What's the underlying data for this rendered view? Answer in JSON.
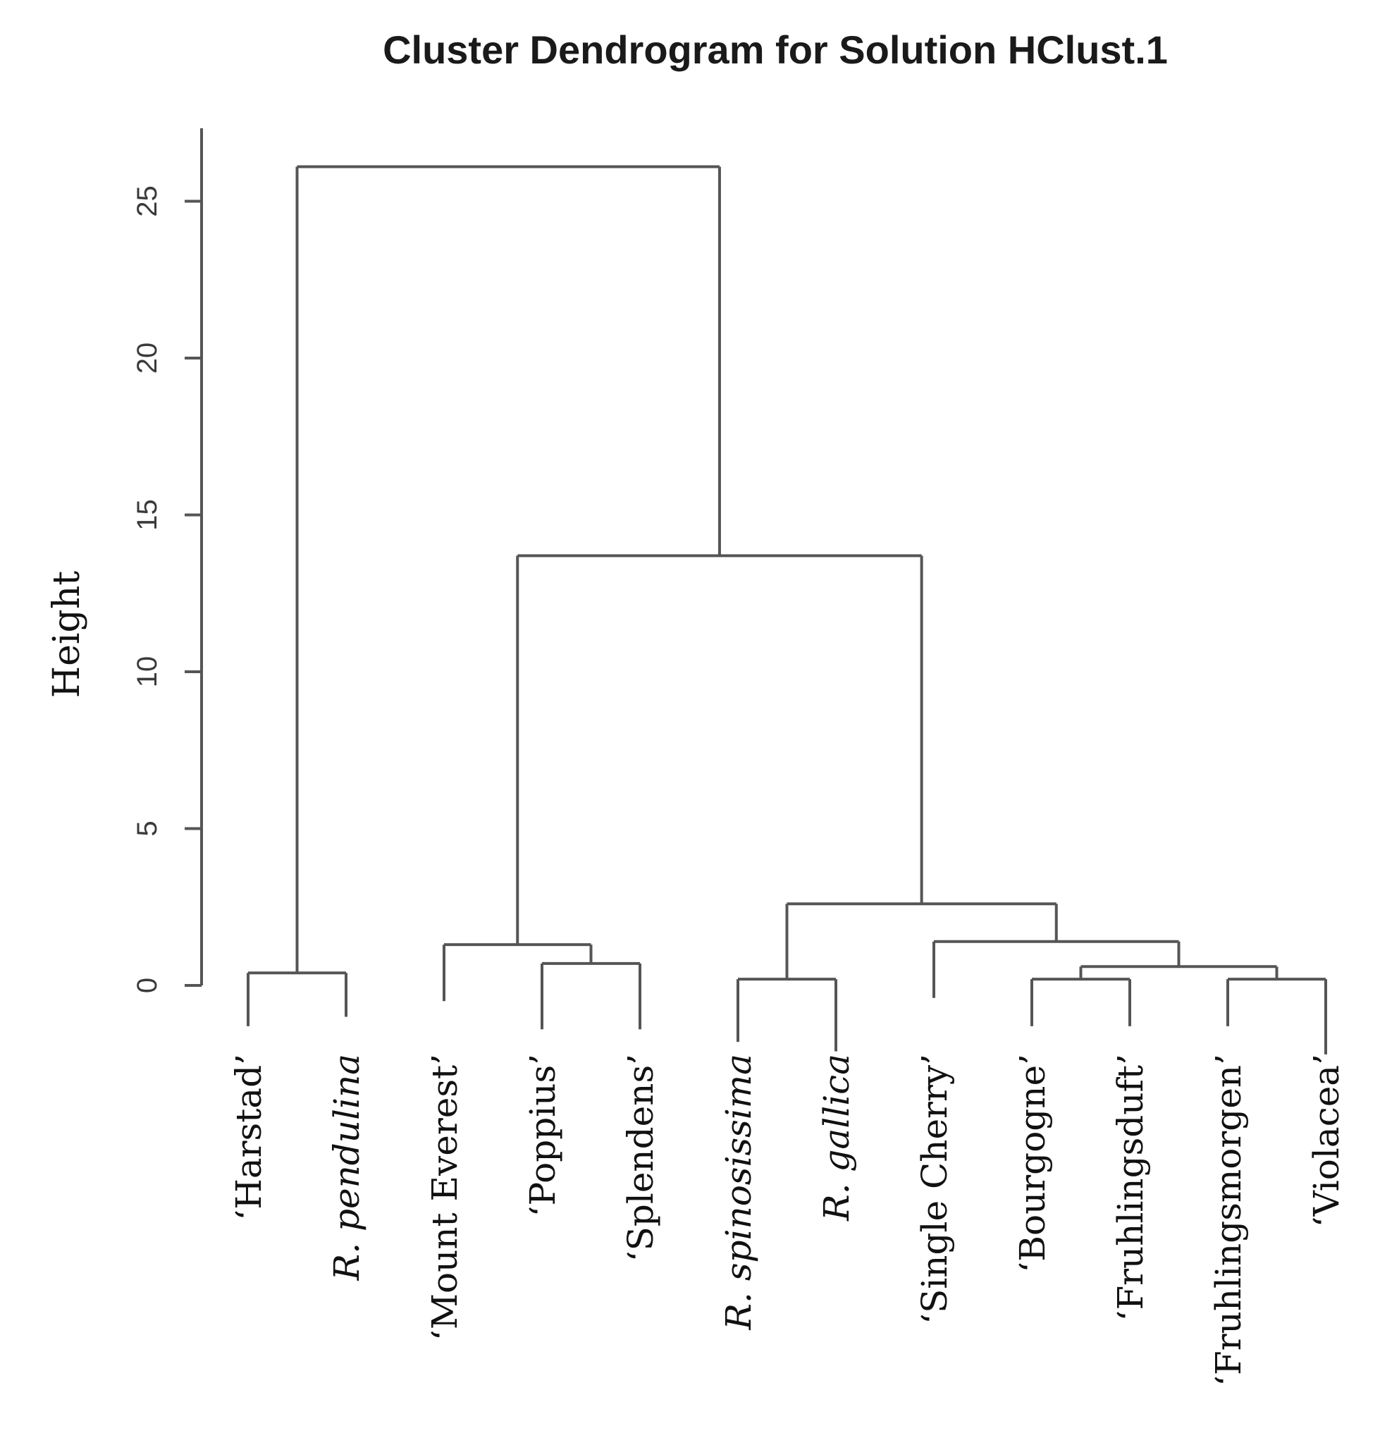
{
  "chart_data": {
    "type": "dendrogram",
    "title": "Cluster Dendrogram for Solution HClust.1",
    "ylabel": "Height",
    "xlabel": "",
    "ylim": [
      0,
      27
    ],
    "yticks": [
      "0",
      "5",
      "10",
      "15",
      "20",
      "25"
    ],
    "leaves": [
      {
        "id": "harstad",
        "parts": [
          {
            "text": "‘Harstad’",
            "italic": false
          }
        ],
        "hang": -1.3
      },
      {
        "id": "r-pendulina",
        "parts": [
          {
            "text": "R.",
            "italic": true
          },
          {
            "text": " pendulina",
            "italic": true
          }
        ],
        "hang": -1.0
      },
      {
        "id": "mount-everest",
        "parts": [
          {
            "text": "‘Mount Everest’",
            "italic": false
          }
        ],
        "hang": -0.5
      },
      {
        "id": "poppius",
        "parts": [
          {
            "text": "‘Poppius’",
            "italic": false
          }
        ],
        "hang": -1.4
      },
      {
        "id": "splendens",
        "parts": [
          {
            "text": "‘Splendens’",
            "italic": false
          }
        ],
        "hang": -1.4
      },
      {
        "id": "r-spinosissima",
        "parts": [
          {
            "text": "R.",
            "italic": true
          },
          {
            "text": " spinosissima",
            "italic": true
          }
        ],
        "hang": -1.8
      },
      {
        "id": "r-gallica",
        "parts": [
          {
            "text": "R.",
            "italic": true
          },
          {
            "text": " gallica",
            "italic": true
          }
        ],
        "hang": -2.1
      },
      {
        "id": "single-cherry",
        "parts": [
          {
            "text": "‘Single Cherry’",
            "italic": false
          }
        ],
        "hang": -0.4
      },
      {
        "id": "bourgogne",
        "parts": [
          {
            "text": "‘Bourgogne’",
            "italic": false
          }
        ],
        "hang": -1.3
      },
      {
        "id": "fruhlingsduft",
        "parts": [
          {
            "text": "‘Fruhlingsduft’",
            "italic": false
          }
        ],
        "hang": -1.3
      },
      {
        "id": "fruhlingsmorgen",
        "parts": [
          {
            "text": "‘Fruhlingsmorgen’",
            "italic": false
          }
        ],
        "hang": -1.3
      },
      {
        "id": "violacea",
        "parts": [
          {
            "text": "‘Violacea’",
            "italic": false
          }
        ],
        "hang": -2.2
      }
    ],
    "merges": [
      {
        "left": "L:harstad",
        "right": "L:r-pendulina",
        "height": 0.4
      },
      {
        "left": "L:poppius",
        "right": "L:splendens",
        "height": 0.7
      },
      {
        "left": "L:mount-everest",
        "right": "M:1",
        "height": 1.3
      },
      {
        "left": "L:r-spinosissima",
        "right": "L:r-gallica",
        "height": 0.2
      },
      {
        "left": "L:bourgogne",
        "right": "L:fruhlingsduft",
        "height": 0.2
      },
      {
        "left": "L:fruhlingsmorgen",
        "right": "L:violacea",
        "height": 0.2
      },
      {
        "left": "M:4",
        "right": "M:5",
        "height": 0.6
      },
      {
        "left": "L:single-cherry",
        "right": "M:6",
        "height": 1.4
      },
      {
        "left": "M:3",
        "right": "M:7",
        "height": 2.6
      },
      {
        "left": "M:2",
        "right": "M:8",
        "height": 13.7
      },
      {
        "left": "M:0",
        "right": "M:9",
        "height": 26.1
      }
    ]
  }
}
